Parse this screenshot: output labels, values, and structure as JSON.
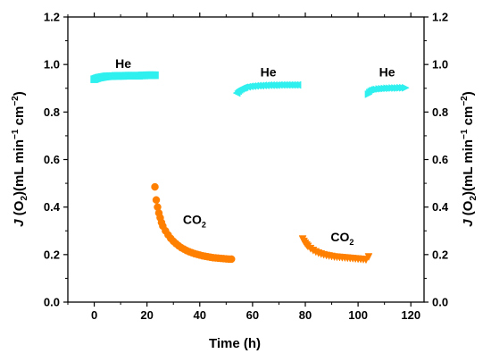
{
  "chart_data": {
    "type": "scatter",
    "xlabel": "Time (h)",
    "ylabel": "J(O2)(mL min-1 cm-2)",
    "ylabel_parts": {
      "j": "J",
      "open": " (O",
      "sub": "2",
      "mid": ")(mL min",
      "sup1": "−1",
      "cm": " cm",
      "sup2": "−2",
      "close": ")"
    },
    "xlim": [
      -10,
      125
    ],
    "ylim": [
      0.0,
      1.2
    ],
    "xticks": [
      "0",
      "20",
      "40",
      "60",
      "80",
      "100",
      "120"
    ],
    "xtick_values": [
      0,
      20,
      40,
      60,
      80,
      100,
      120
    ],
    "yticks": [
      "0.0",
      "0.2",
      "0.4",
      "0.6",
      "0.8",
      "1.0",
      "1.2"
    ],
    "ytick_values": [
      0.0,
      0.2,
      0.4,
      0.6,
      0.8,
      1.0,
      1.2
    ],
    "grid": false,
    "colors": {
      "he": "#2ff0ee",
      "co2": "#ff8000"
    },
    "series": [
      {
        "group": "He",
        "marker": "square",
        "color": "#2ff0ee",
        "x": [
          0,
          0.5,
          1,
          1.5,
          2,
          2.5,
          3,
          3.5,
          4,
          4.5,
          5,
          6,
          7,
          8,
          9,
          10,
          11,
          12,
          13,
          14,
          15,
          16,
          17,
          18,
          19,
          20,
          21,
          22,
          23
        ],
        "y": [
          0.938,
          0.94,
          0.942,
          0.944,
          0.945,
          0.946,
          0.947,
          0.948,
          0.949,
          0.95,
          0.95,
          0.951,
          0.951,
          0.952,
          0.952,
          0.952,
          0.952,
          0.953,
          0.953,
          0.953,
          0.953,
          0.953,
          0.953,
          0.954,
          0.954,
          0.955,
          0.955,
          0.955,
          0.955
        ]
      },
      {
        "group": "CO2",
        "marker": "circle",
        "color": "#ff8000",
        "x": [
          23,
          23.5,
          24,
          24.5,
          25,
          25.5,
          26,
          27,
          28,
          29,
          30,
          31,
          32,
          33,
          34,
          35,
          36,
          37,
          38,
          39,
          40,
          41,
          42,
          43,
          44,
          45,
          46,
          47,
          48,
          49,
          50,
          51,
          52
        ],
        "y": [
          0.485,
          0.43,
          0.4,
          0.375,
          0.355,
          0.335,
          0.32,
          0.3,
          0.283,
          0.268,
          0.256,
          0.246,
          0.237,
          0.229,
          0.223,
          0.217,
          0.212,
          0.208,
          0.204,
          0.201,
          0.198,
          0.195,
          0.193,
          0.191,
          0.189,
          0.187,
          0.186,
          0.185,
          0.184,
          0.183,
          0.182,
          0.181,
          0.181
        ]
      },
      {
        "group": "He",
        "marker": "left-triangle",
        "color": "#2ff0ee",
        "x": [
          54,
          54.5,
          55,
          55.5,
          56,
          56.5,
          57,
          58,
          59,
          60,
          61,
          62,
          63,
          64,
          65,
          66,
          67,
          68,
          69,
          70,
          71,
          72,
          73,
          74,
          75,
          76,
          77
        ],
        "y": [
          0.88,
          0.888,
          0.893,
          0.897,
          0.9,
          0.902,
          0.904,
          0.906,
          0.908,
          0.909,
          0.91,
          0.911,
          0.911,
          0.912,
          0.912,
          0.913,
          0.913,
          0.913,
          0.913,
          0.914,
          0.914,
          0.914,
          0.914,
          0.914,
          0.914,
          0.914,
          0.914
        ]
      },
      {
        "group": "CO2",
        "marker": "down-triangle",
        "color": "#ff8000",
        "x": [
          79,
          79.5,
          80,
          80.5,
          81,
          82,
          83,
          84,
          85,
          86,
          87,
          88,
          89,
          90,
          91,
          92,
          93,
          94,
          95,
          96,
          97,
          98,
          99,
          100,
          101,
          102,
          103,
          104
        ],
        "y": [
          0.265,
          0.255,
          0.247,
          0.24,
          0.234,
          0.225,
          0.217,
          0.211,
          0.206,
          0.202,
          0.199,
          0.196,
          0.194,
          0.192,
          0.19,
          0.189,
          0.188,
          0.187,
          0.186,
          0.185,
          0.184,
          0.183,
          0.182,
          0.181,
          0.18,
          0.179,
          0.178,
          0.19
        ]
      },
      {
        "group": "He",
        "marker": "right-triangle",
        "color": "#2ff0ee",
        "x": [
          104,
          104.5,
          105,
          105.5,
          106,
          106.5,
          107,
          108,
          109,
          110,
          111,
          112,
          113,
          114,
          115,
          116,
          117,
          118
        ],
        "y": [
          0.875,
          0.882,
          0.886,
          0.889,
          0.891,
          0.893,
          0.895,
          0.897,
          0.898,
          0.899,
          0.9,
          0.9,
          0.901,
          0.901,
          0.901,
          0.902,
          0.902,
          0.902
        ]
      }
    ],
    "annotations": [
      {
        "text": "He",
        "x": 11,
        "y": 0.985
      },
      {
        "text": "He",
        "x": 66,
        "y": 0.95
      },
      {
        "text": "He",
        "x": 111,
        "y": 0.95
      },
      {
        "text": "CO",
        "sub": "2",
        "x": 38,
        "y": 0.33
      },
      {
        "text": "CO",
        "sub": "2",
        "x": 94,
        "y": 0.255
      }
    ]
  }
}
